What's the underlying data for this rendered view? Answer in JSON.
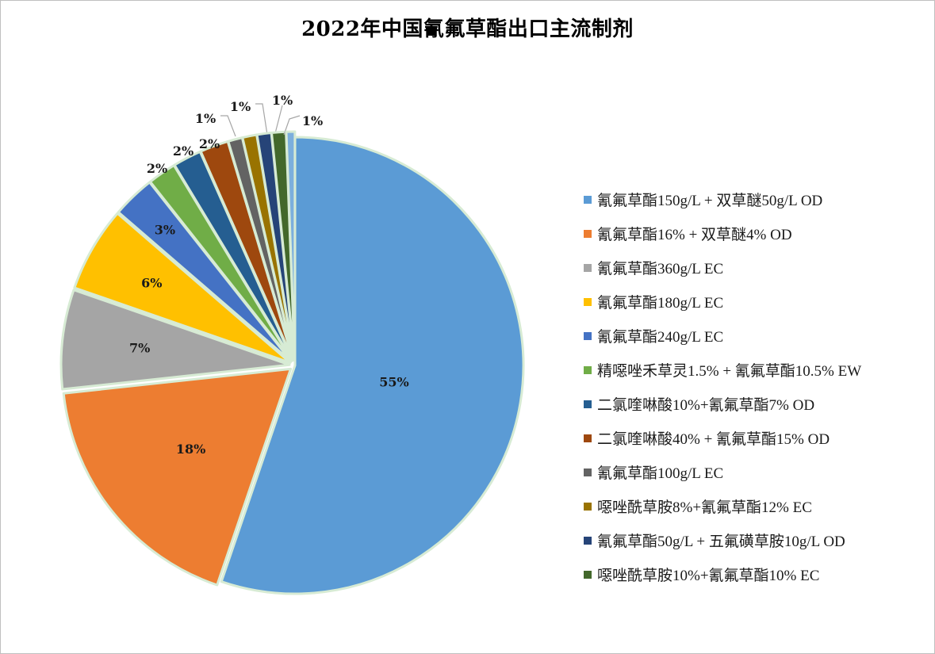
{
  "chart_data": {
    "type": "pie",
    "title": "2022年中国氰氟草酯出口主流制剂",
    "legend_position": "right",
    "slices": [
      {
        "name": "氰氟草酯150g/L + 双草醚50g/L OD",
        "value": 55,
        "label": "55%",
        "color": "#5b9bd5"
      },
      {
        "name": "氰氟草酯16% + 双草醚4% OD",
        "value": 18,
        "label": "18%",
        "color": "#ed7d31"
      },
      {
        "name": "氰氟草酯360g/L EC",
        "value": 7,
        "label": "7%",
        "color": "#a5a5a5"
      },
      {
        "name": "氰氟草酯180g/L EC",
        "value": 6,
        "label": "6%",
        "color": "#ffc000"
      },
      {
        "name": "氰氟草酯240g/L EC",
        "value": 3,
        "label": "3%",
        "color": "#4472c4"
      },
      {
        "name": "精噁唑禾草灵1.5% + 氰氟草酯10.5% EW",
        "value": 2,
        "label": "2%",
        "color": "#70ad47"
      },
      {
        "name": "二氯喹啉酸10%+氰氟草酯7% OD",
        "value": 2,
        "label": "2%",
        "color": "#255e91"
      },
      {
        "name": "二氯喹啉酸40% + 氰氟草酯15% OD",
        "value": 2,
        "label": "2%",
        "color": "#9e480e"
      },
      {
        "name": "氰氟草酯100g/L EC",
        "value": 1,
        "label": "1%",
        "color": "#636363"
      },
      {
        "name": "噁唑酰草胺8%+氰氟草酯12% EC",
        "value": 1,
        "label": "1%",
        "color": "#997300"
      },
      {
        "name": "氰氟草酯50g/L + 五氟磺草胺10g/L OD",
        "value": 1,
        "label": "1%",
        "color": "#264478"
      },
      {
        "name": "噁唑酰草胺10%+氰氟草酯10% EC",
        "value": 1,
        "label": "1%",
        "color": "#43682b"
      },
      {
        "name": "",
        "value": 0.6,
        "label": "1%",
        "color": "#7cafdd"
      }
    ]
  }
}
